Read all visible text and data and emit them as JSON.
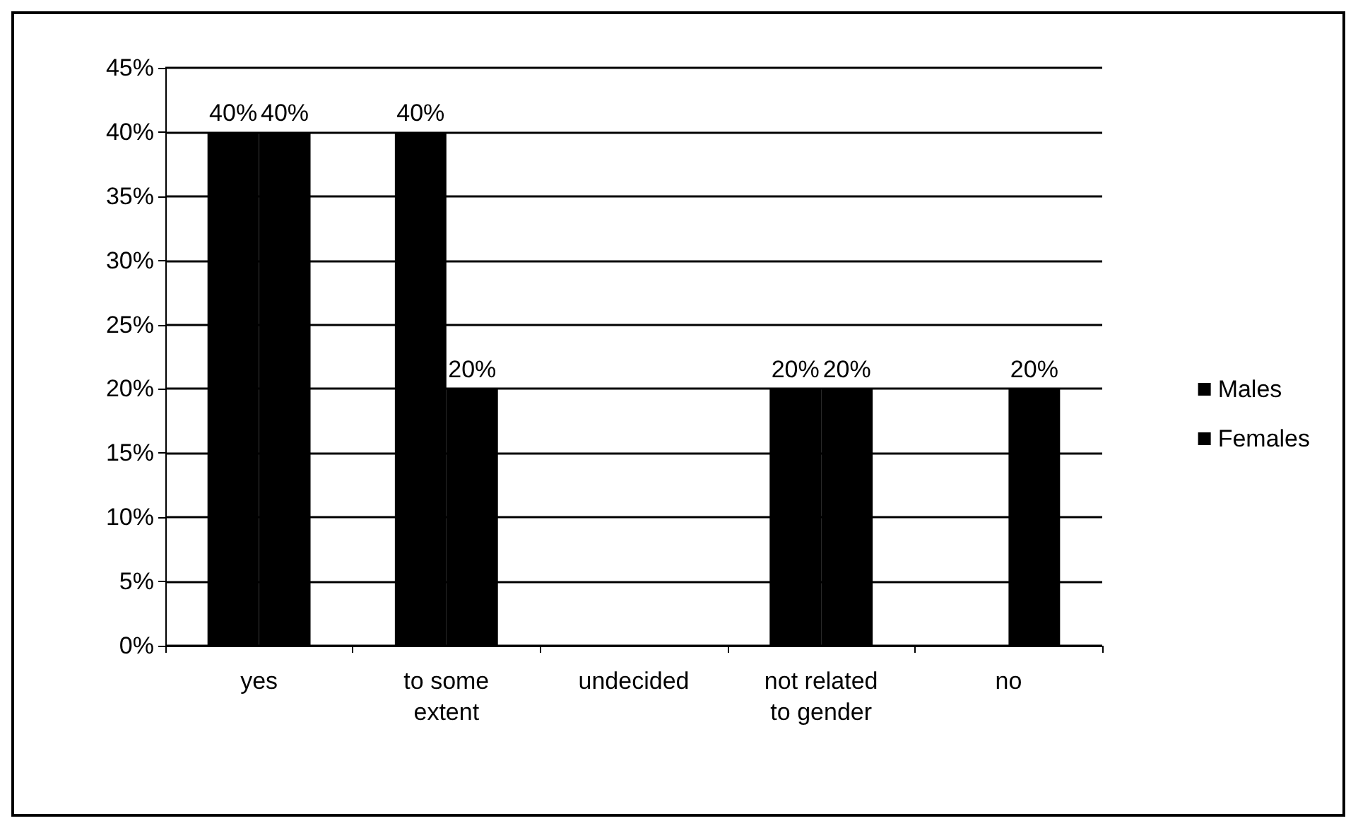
{
  "chart_data": {
    "type": "bar",
    "categories": [
      "yes",
      "to some\nextent",
      "undecided",
      "not related\nto gender",
      "no"
    ],
    "series": [
      {
        "name": "Males",
        "color": "#000000",
        "values": [
          40,
          40,
          null,
          20,
          null
        ],
        "value_labels": [
          "40%",
          "40%",
          null,
          "20%",
          null
        ]
      },
      {
        "name": "Females",
        "color": "#000000",
        "values": [
          40,
          20,
          null,
          20,
          20
        ],
        "value_labels": [
          "40%",
          "20%",
          null,
          "20%",
          "20%"
        ]
      }
    ],
    "ylim": [
      0,
      45
    ],
    "yticks": [
      {
        "value": 0,
        "label": "0%"
      },
      {
        "value": 5,
        "label": "5%"
      },
      {
        "value": 10,
        "label": "10%"
      },
      {
        "value": 15,
        "label": "15%"
      },
      {
        "value": 20,
        "label": "20%"
      },
      {
        "value": 25,
        "label": "25%"
      },
      {
        "value": 30,
        "label": "30%"
      },
      {
        "value": 35,
        "label": "35%"
      },
      {
        "value": 40,
        "label": "40%"
      },
      {
        "value": 45,
        "label": "45%"
      }
    ],
    "grid": "y",
    "legend": "right"
  }
}
